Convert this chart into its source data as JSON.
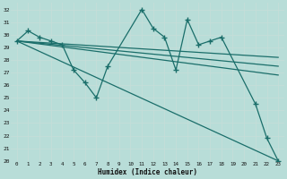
{
  "bg_color": "#b8ddd8",
  "line_color": "#1a6e6a",
  "xlabel": "Humidex (Indice chaleur)",
  "xlim": [
    -0.5,
    23.5
  ],
  "ylim": [
    20,
    32.5
  ],
  "yticks": [
    20,
    21,
    22,
    23,
    24,
    25,
    26,
    27,
    28,
    29,
    30,
    31,
    32
  ],
  "xticks": [
    0,
    1,
    2,
    3,
    4,
    5,
    6,
    7,
    8,
    9,
    10,
    11,
    12,
    13,
    14,
    15,
    16,
    17,
    18,
    19,
    20,
    21,
    22,
    23
  ],
  "main_series": {
    "x": [
      0,
      1,
      2,
      3,
      4,
      5,
      6,
      7,
      8,
      11,
      12,
      13,
      14,
      15,
      16,
      17,
      18,
      21,
      22,
      23
    ],
    "y": [
      29.5,
      30.3,
      29.8,
      29.5,
      29.2,
      27.2,
      26.2,
      25.0,
      27.5,
      32.0,
      30.5,
      29.8,
      27.2,
      31.2,
      29.2,
      29.5,
      29.8,
      24.5,
      21.8,
      20.0
    ]
  },
  "trend_lines": [
    {
      "x": [
        0,
        23
      ],
      "y": [
        29.5,
        27.5
      ]
    },
    {
      "x": [
        0,
        23
      ],
      "y": [
        29.5,
        26.8
      ]
    },
    {
      "x": [
        0,
        23
      ],
      "y": [
        29.5,
        28.2
      ]
    },
    {
      "x": [
        0,
        23
      ],
      "y": [
        29.5,
        20.0
      ]
    }
  ]
}
